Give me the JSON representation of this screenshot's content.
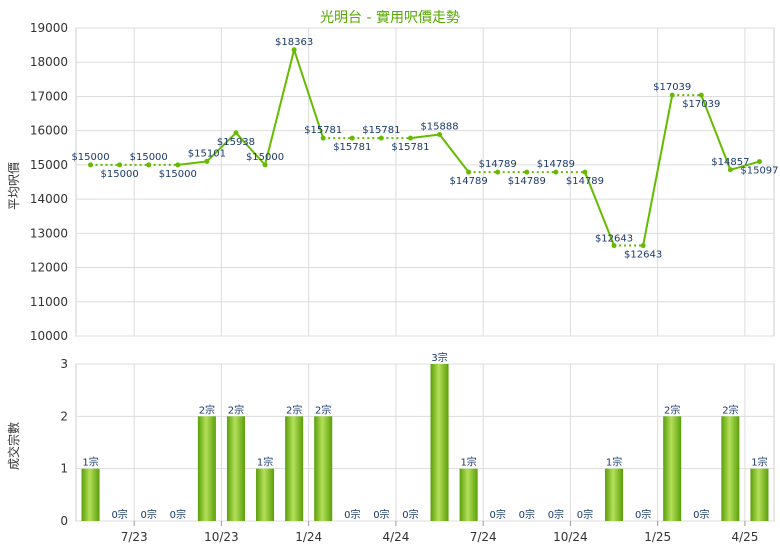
{
  "chart_data": [
    {
      "type": "line",
      "title": "光明台 - 實用呎價走勢",
      "ylabel": "平均呎價",
      "ylim": [
        10000,
        19000
      ],
      "yticks": [
        10000,
        11000,
        12000,
        13000,
        14000,
        15000,
        16000,
        17000,
        18000,
        19000
      ],
      "grid": true,
      "series": [
        {
          "values": [
            15000,
            15000,
            15000,
            15000,
            15101,
            15938,
            15000,
            18363,
            15781,
            15781,
            15781,
            15781,
            15888,
            14789,
            14789,
            14789,
            14789,
            14789,
            12643,
            12643,
            17039,
            17039,
            14857,
            15097
          ],
          "labels": [
            "$15000",
            "$15000",
            "$15000",
            "$15000",
            "$15101",
            "$15938",
            "$15000",
            "$18363",
            "$15781",
            "$15781",
            "$15781",
            "$15781",
            "$15888",
            "$14789",
            "$14789",
            "$14789",
            "$14789",
            "$14789",
            "$12643",
            "$12643",
            "$17039",
            "$17039",
            "$14857",
            "$15097"
          ],
          "interpolated": [
            false,
            true,
            true,
            true,
            false,
            false,
            false,
            false,
            false,
            true,
            true,
            true,
            false,
            false,
            true,
            true,
            true,
            false,
            false,
            true,
            false,
            true,
            false,
            false
          ]
        }
      ]
    },
    {
      "type": "bar",
      "ylabel": "成交宗數",
      "ylim": [
        0,
        3
      ],
      "yticks": [
        0,
        1,
        2,
        3
      ],
      "categories": [
        "7/23",
        "10/23",
        "1/24",
        "4/24",
        "7/24",
        "10/24",
        "1/25",
        "4/25"
      ],
      "values": [
        1,
        0,
        0,
        0,
        2,
        2,
        1,
        2,
        2,
        0,
        0,
        0,
        3,
        1,
        0,
        0,
        0,
        0,
        1,
        0,
        2,
        0,
        2,
        1
      ],
      "labels": [
        "1宗",
        "0宗",
        "0宗",
        "0宗",
        "2宗",
        "2宗",
        "1宗",
        "2宗",
        "2宗",
        "0宗",
        "0宗",
        "0宗",
        "3宗",
        "1宗",
        "0宗",
        "0宗",
        "0宗",
        "0宗",
        "1宗",
        "0宗",
        "2宗",
        "0宗",
        "2宗",
        "1宗"
      ]
    }
  ],
  "colors": {
    "line": "#66bb00",
    "bar_light": "#b4e05a",
    "bar_dark": "#5a9e0a",
    "title": "#55aa00",
    "label": "#1a3a6b",
    "grid": "#dddddd"
  }
}
